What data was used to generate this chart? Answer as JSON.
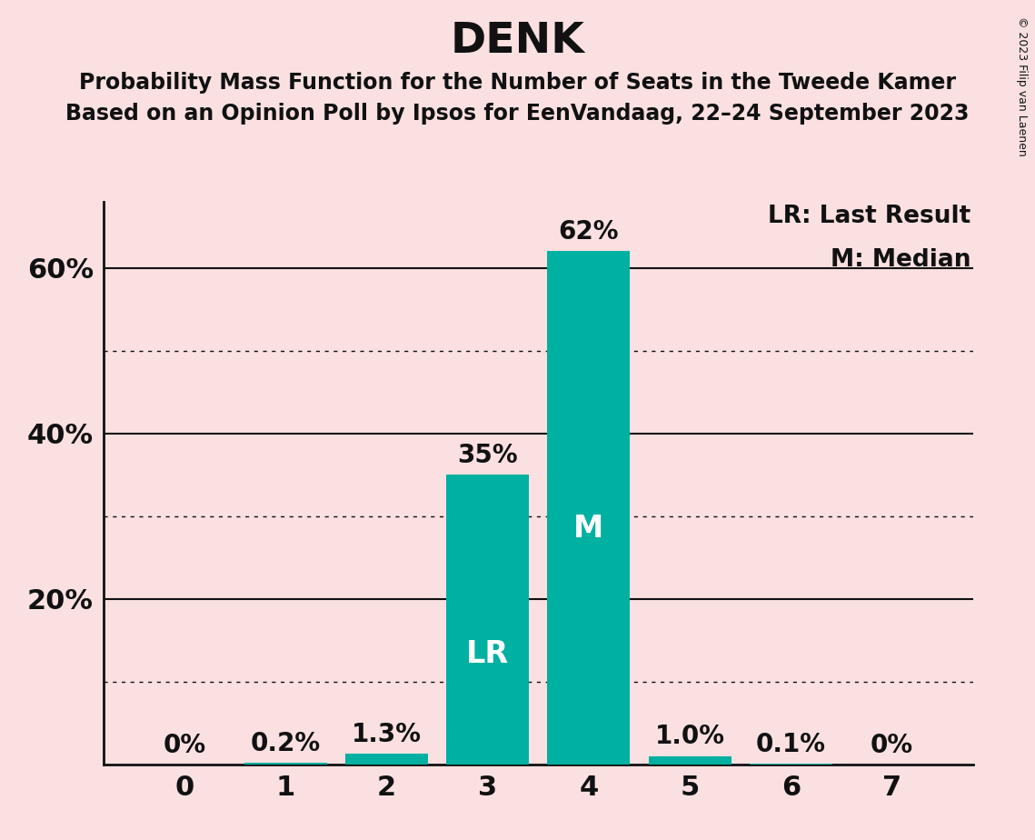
{
  "title": "DENK",
  "subtitle1": "Probability Mass Function for the Number of Seats in the Tweede Kamer",
  "subtitle2": "Based on an Opinion Poll by Ipsos for EenVandaag, 22–24 September 2023",
  "copyright": "© 2023 Filip van Laenen",
  "categories": [
    0,
    1,
    2,
    3,
    4,
    5,
    6,
    7
  ],
  "values": [
    0.0,
    0.2,
    1.3,
    35.0,
    62.0,
    1.0,
    0.1,
    0.0
  ],
  "bar_color": "#00B0A0",
  "background_color": "#FAE0E0",
  "label_color": "#111111",
  "bar_labels": [
    "0%",
    "0.2%",
    "1.3%",
    "35%",
    "62%",
    "1.0%",
    "0.1%",
    "0%"
  ],
  "lr_bar": 3,
  "median_bar": 4,
  "lr_label": "LR",
  "median_label": "M",
  "legend_lr": "LR: Last Result",
  "legend_m": "M: Median",
  "ylim": [
    0,
    68
  ],
  "ytick_positions": [
    20,
    40,
    60
  ],
  "ytick_labels": [
    "20%",
    "40%",
    "60%"
  ],
  "dotted_yticks": [
    10,
    30,
    50
  ],
  "solid_yticks": [
    20,
    40,
    60
  ],
  "title_fontsize": 34,
  "subtitle_fontsize": 17,
  "axis_fontsize": 22,
  "bar_label_fontsize": 20,
  "bar_inner_label_fontsize": 24,
  "legend_fontsize": 19,
  "copyright_fontsize": 9
}
